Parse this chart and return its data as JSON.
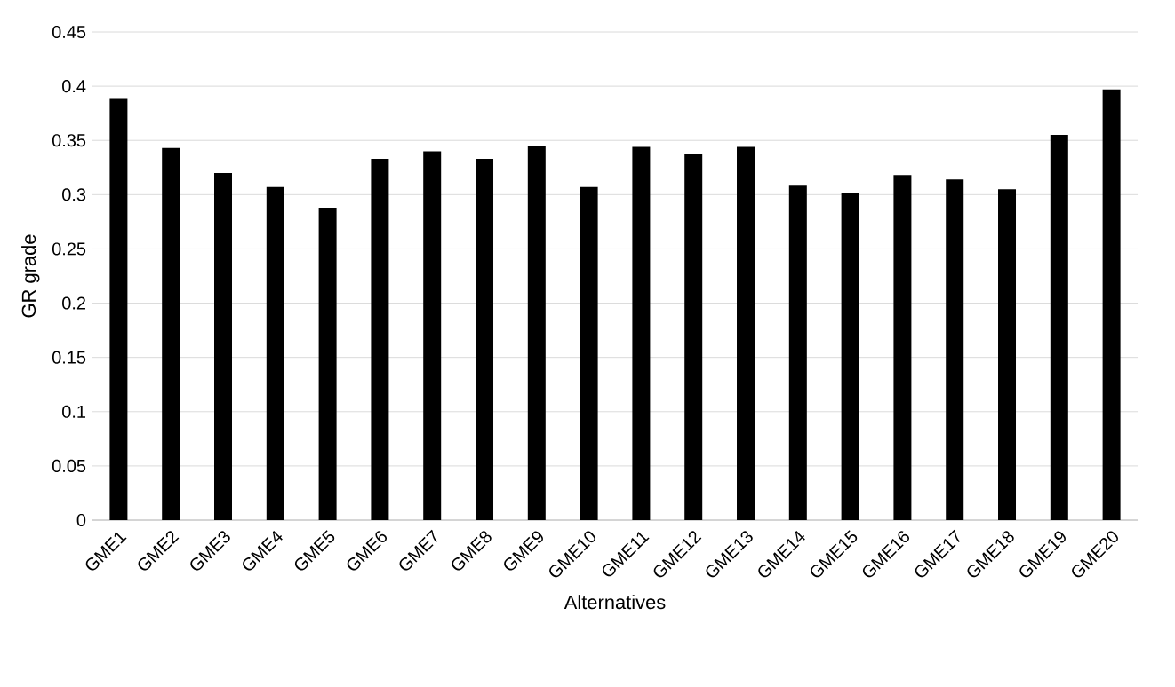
{
  "chart_data": {
    "type": "bar",
    "xlabel": "Alternatives",
    "ylabel": "GR grade",
    "categories": [
      "GME1",
      "GME2",
      "GME3",
      "GME4",
      "GME5",
      "GME6",
      "GME7",
      "GME8",
      "GME9",
      "GME10",
      "GME11",
      "GME12",
      "GME13",
      "GME14",
      "GME15",
      "GME16",
      "GME17",
      "GME18",
      "GME19",
      "GME20"
    ],
    "values": [
      0.389,
      0.343,
      0.32,
      0.307,
      0.288,
      0.333,
      0.34,
      0.333,
      0.345,
      0.307,
      0.344,
      0.337,
      0.344,
      0.309,
      0.302,
      0.318,
      0.314,
      0.305,
      0.355,
      0.397
    ],
    "color": "#000000",
    "ylim": [
      0,
      0.45
    ],
    "yticks": [
      0,
      0.05,
      0.1,
      0.15,
      0.2,
      0.25,
      0.3,
      0.35,
      0.4,
      0.45
    ],
    "grid": "y"
  }
}
